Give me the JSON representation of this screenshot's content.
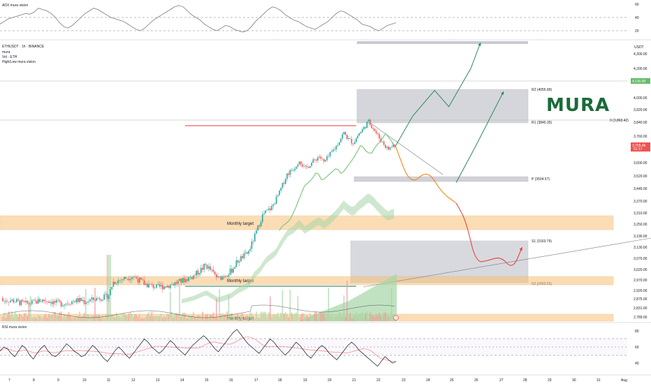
{
  "adx_panel": {
    "label": "ADX mura vision",
    "ticks": [
      "60",
      "40",
      "20"
    ],
    "values": [
      30,
      34,
      38,
      40,
      42,
      44,
      46,
      45,
      48,
      54,
      52,
      50,
      46,
      40,
      32,
      26,
      24,
      28,
      34,
      40,
      46,
      50,
      54,
      52,
      48,
      44,
      40,
      38,
      36,
      34,
      30,
      26,
      22,
      20,
      24,
      30,
      36,
      40,
      44,
      48,
      52,
      56,
      58,
      56,
      50,
      44,
      40,
      36,
      30,
      26,
      22,
      20,
      24,
      28,
      26,
      22,
      20,
      18,
      20,
      26,
      34,
      40,
      46,
      52,
      56,
      54,
      50,
      44,
      40,
      36,
      34,
      30,
      26,
      24,
      22,
      26,
      30,
      34,
      40,
      46,
      50,
      48,
      44,
      40,
      36,
      30,
      28,
      26,
      22,
      20,
      24,
      28,
      30,
      32
    ]
  },
  "legend": {
    "symbol": "ETHUSDT · 1h · BINANCE",
    "lines": [
      "mura",
      "Vol · ETH",
      "High/Low mura vision"
    ]
  },
  "price_axis": {
    "currency": "USDT",
    "ticks": [
      "4,300.00",
      "4,200.00",
      "4,000.00",
      "3,920.00",
      "3,840.00",
      "3,760.00",
      "3,680.00",
      "3,600.00",
      "3,520.00",
      "3,445.00",
      "3,370.00",
      "3,310.00",
      "3,250.00",
      "3,190.00",
      "3,130.00",
      "3,070.00",
      "3,020.00",
      "2,970.00",
      "2,920.00",
      "2,875.00",
      "2,831.00",
      "2,789.00"
    ],
    "price_badge": "4,116.58",
    "last_price_badge": "3,705.46",
    "last_price_sub": "51:17",
    "level_line_label": "0 (3,860.42)"
  },
  "levels": {
    "r2": "R2 (4055.89)",
    "r1": "R1 (3845.35)",
    "p": "P (3504.57)",
    "s1": "S1 (3163.79)",
    "s2": "S2 (2953.25)"
  },
  "zones": {
    "monthly_target": "Monthly target"
  },
  "logo": "MURA",
  "rsi_panel": {
    "label": "RSI mura vision",
    "ticks": [
      "80",
      "60",
      "40"
    ],
    "values": [
      55,
      60,
      58,
      52,
      48,
      55,
      62,
      58,
      50,
      45,
      52,
      58,
      62,
      55,
      50,
      48,
      52,
      58,
      64,
      60,
      55,
      52,
      48,
      50,
      56,
      62,
      58,
      52,
      46,
      42,
      48,
      55,
      60,
      56,
      50,
      46,
      52,
      58,
      64,
      70,
      66,
      60,
      56,
      52,
      56,
      62,
      68,
      64,
      58,
      54,
      50,
      56,
      62,
      66,
      70,
      74,
      70,
      64,
      58,
      54,
      60,
      66,
      72,
      78,
      82,
      76,
      70,
      64,
      60,
      56,
      52,
      58,
      64,
      70,
      66,
      60,
      55,
      50,
      54,
      60,
      66,
      62,
      56,
      50,
      46,
      52,
      58,
      62,
      58,
      52,
      48,
      44,
      50,
      56,
      62,
      66,
      62,
      56,
      52,
      48,
      44,
      40,
      36,
      42,
      48,
      44,
      40,
      42
    ]
  },
  "time_axis": {
    "ticks": [
      "7",
      "8",
      "9",
      "10",
      "11",
      "12",
      "13",
      "14",
      "15",
      "16",
      "17",
      "18",
      "19",
      "20",
      "21",
      "22",
      "23",
      "24",
      "25",
      "26",
      "27",
      "28",
      "29",
      "30",
      "31",
      "Aug"
    ]
  },
  "colors": {
    "up": "#26a69a",
    "down": "#ef5350",
    "zone_orange": "#f8c27a",
    "zone_gray": "#b2b5be",
    "green_arrow": "#2e8b57",
    "orange_path": "#f57c00",
    "red_path": "#e53935",
    "logo": "#1b6b3a",
    "badge_green": "#4caf50",
    "badge_red": "#ef5350"
  },
  "chart_data": {
    "type": "candlestick",
    "title": "ETHUSDT · 1h · BINANCE",
    "x_labels": [
      "7",
      "8",
      "9",
      "10",
      "11",
      "12",
      "13",
      "14",
      "15",
      "16",
      "17",
      "18",
      "19",
      "20",
      "21",
      "22",
      "23",
      "24",
      "25",
      "26",
      "27",
      "28",
      "29",
      "30",
      "31",
      "Aug"
    ],
    "price_path": [
      [
        "10",
        2860
      ],
      [
        "11",
        2890
      ],
      [
        "11.2",
        2960
      ],
      [
        "12",
        2990
      ],
      [
        "12.5",
        2950
      ],
      [
        "13",
        2935
      ],
      [
        "13.5",
        2945
      ],
      [
        "14",
        2965
      ],
      [
        "14.5",
        2990
      ],
      [
        "15",
        3040
      ],
      [
        "15.5",
        2975
      ],
      [
        "16",
        3010
      ],
      [
        "16.3",
        3060
      ],
      [
        "16.7",
        3100
      ],
      [
        "17",
        3200
      ],
      [
        "17.3",
        3300
      ],
      [
        "17.7",
        3340
      ],
      [
        "18",
        3420
      ],
      [
        "18.3",
        3530
      ],
      [
        "18.6",
        3570
      ],
      [
        "18.8",
        3620
      ],
      [
        "19",
        3560
      ],
      [
        "19.3",
        3600
      ],
      [
        "19.6",
        3640
      ],
      [
        "19.8",
        3600
      ],
      [
        "20",
        3640
      ],
      [
        "20.3",
        3700
      ],
      [
        "20.6",
        3780
      ],
      [
        "20.8",
        3740
      ],
      [
        "21",
        3720
      ],
      [
        "21.2",
        3770
      ],
      [
        "21.4",
        3800
      ],
      [
        "21.6",
        3845
      ],
      [
        "21.8",
        3810
      ],
      [
        "22",
        3760
      ],
      [
        "22.2",
        3720
      ],
      [
        "22.4",
        3680
      ],
      [
        "22.6",
        3705
      ]
    ],
    "levels": [
      {
        "name": "R2",
        "value": 4055.89
      },
      {
        "name": "R1",
        "value": 3845.35
      },
      {
        "name": "P",
        "value": 3504.57
      },
      {
        "name": "S1",
        "value": 3163.79
      },
      {
        "name": "S2",
        "value": 2953.25
      }
    ],
    "projection_up": [
      [
        "22.7",
        3700
      ],
      [
        "23.4",
        3880
      ],
      [
        "24.3",
        4050
      ],
      [
        "24.9",
        3940
      ],
      [
        "25.8",
        4200
      ],
      [
        "26.4",
        4320
      ]
    ],
    "projection_up_2": [
      [
        "25.2",
        3480
      ],
      [
        "26.0",
        3700
      ],
      [
        "27.0",
        4070
      ]
    ],
    "projection_down": [
      [
        "22.7",
        3700
      ],
      [
        "23.3",
        3460
      ],
      [
        "24.0",
        3560
      ],
      [
        "24.6",
        3420
      ],
      [
        "25.2",
        3360
      ],
      [
        "25.6",
        3270
      ],
      [
        "26.0",
        3050
      ],
      [
        "26.5",
        3060
      ],
      [
        "27.0",
        3080
      ],
      [
        "27.5",
        3020
      ],
      [
        "27.9",
        3130
      ]
    ]
  }
}
